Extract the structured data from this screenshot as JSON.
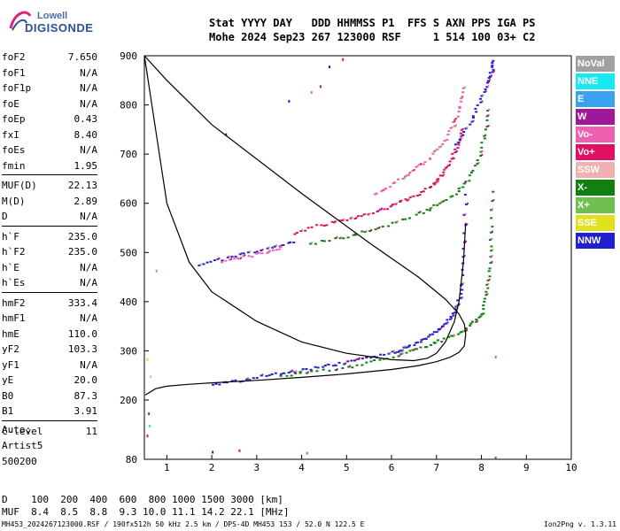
{
  "logo": {
    "line1": "Lowell",
    "line2": "DIGISONDE",
    "color": "#2d4f9a",
    "accent": "#e0207a"
  },
  "header": {
    "row1": "Stat YYYY DAY   DDD HHMMSS P1  FFS S AXN PPS IGA PS",
    "row2": "Mohe 2024 Sep23 267 123000 RSF     1 514 100 03+ C2"
  },
  "params": [
    [
      {
        "name": "foF2",
        "value": "7.650"
      },
      {
        "name": "foF1",
        "value": "N/A"
      },
      {
        "name": "foF1p",
        "value": "N/A"
      },
      {
        "name": "foE",
        "value": "N/A"
      },
      {
        "name": "foEp",
        "value": "0.43"
      },
      {
        "name": "fxI",
        "value": "8.40"
      },
      {
        "name": "foEs",
        "value": "N/A"
      },
      {
        "name": "fmin",
        "value": "1.95"
      }
    ],
    [
      {
        "name": "MUF(D)",
        "value": "22.13"
      },
      {
        "name": "M(D)",
        "value": "2.89"
      },
      {
        "name": "D",
        "value": "N/A"
      }
    ],
    [
      {
        "name": "h`F",
        "value": "235.0"
      },
      {
        "name": "h`F2",
        "value": "235.0"
      },
      {
        "name": "h`E",
        "value": "N/A"
      },
      {
        "name": "h`Es",
        "value": "N/A"
      }
    ],
    [
      {
        "name": "hmF2",
        "value": "333.4"
      },
      {
        "name": "hmF1",
        "value": "N/A"
      },
      {
        "name": "hmE",
        "value": "110.0"
      },
      {
        "name": "yF2",
        "value": "103.3"
      },
      {
        "name": "yF1",
        "value": "N/A"
      },
      {
        "name": "yE",
        "value": "20.0"
      },
      {
        "name": "B0",
        "value": "87.3"
      },
      {
        "name": "B1",
        "value": "3.91"
      }
    ],
    [
      {
        "name": "C-level",
        "value": "11"
      }
    ]
  ],
  "auto": {
    "line1": "Auto:",
    "line2": "Artist5",
    "line3": "500200"
  },
  "legend": [
    {
      "label": "NoVal",
      "color": "#a0a0a0"
    },
    {
      "label": "NNE",
      "color": "#18e8f0"
    },
    {
      "label": "E",
      "color": "#3aa0f0"
    },
    {
      "label": "W",
      "color": "#a01898"
    },
    {
      "label": "Vo-",
      "color": "#f060b0"
    },
    {
      "label": "Vo+",
      "color": "#e01060"
    },
    {
      "label": "SSW",
      "color": "#f0b0b0"
    },
    {
      "label": "X-",
      "color": "#108010"
    },
    {
      "label": "X+",
      "color": "#70c050"
    },
    {
      "label": "SSE",
      "color": "#e0e020"
    },
    {
      "label": "NNW",
      "color": "#2020d0"
    }
  ],
  "muf_table": {
    "row1": "D    100  200  400  600  800 1000 1500 3000 [km]",
    "row2": "MUF  8.4  8.5  8.8  9.3 10.0 11.1 14.2 22.1 [MHz]"
  },
  "footer": {
    "left": "MH453_2024267123000.RSF / 190fx512h 50 kHz 2.5 km / DPS-4D MH453 153 / 52.0 N 122.5 E",
    "right": "Ion2Png v. 1.3.11"
  },
  "chart_data": {
    "type": "scatter",
    "xlim": [
      0.5,
      10
    ],
    "ylim": [
      80,
      900
    ],
    "xticks": [
      1,
      2,
      3,
      4,
      5,
      6,
      7,
      8,
      9,
      10
    ],
    "yticks": [
      80,
      200,
      300,
      400,
      500,
      600,
      700,
      800,
      900
    ],
    "profile_curve": {
      "freq": [
        0.52,
        0.75,
        1.0,
        1.5,
        2.0,
        3.0,
        4.0,
        5.0,
        6.0,
        6.6,
        7.0,
        7.3,
        7.5,
        7.62,
        7.65,
        7.62,
        7.5,
        7.2,
        6.6,
        5.5,
        4.0,
        2.0,
        1.0,
        0.5
      ],
      "height": [
        210,
        223,
        228,
        232,
        235,
        240,
        246,
        253,
        262,
        270,
        278,
        287,
        297,
        310,
        333.4,
        355,
        375,
        405,
        450,
        520,
        620,
        760,
        850,
        900
      ]
    },
    "virtual_height_curve": {
      "freq": [
        0.5,
        1.0,
        1.5,
        2.0,
        3.0,
        4.0,
        5.0,
        6.0,
        6.5,
        6.8,
        7.0,
        7.2,
        7.4,
        7.5,
        7.6,
        7.65
      ],
      "height": [
        900,
        600,
        480,
        420,
        360,
        318,
        295,
        282,
        280,
        285,
        295,
        318,
        360,
        400,
        480,
        560
      ]
    },
    "traces": [
      {
        "name": "F2 O-mode",
        "color": "#2020d0",
        "freq": [
          2.0,
          2.5,
          3.0,
          3.5,
          4.0,
          4.5,
          5.0,
          5.5,
          6.0,
          6.3,
          6.6,
          6.9,
          7.1,
          7.3,
          7.45,
          7.55,
          7.6,
          7.63
        ],
        "height": [
          233,
          240,
          248,
          255,
          262,
          270,
          278,
          287,
          298,
          308,
          320,
          335,
          350,
          370,
          395,
          440,
          520,
          640
        ]
      },
      {
        "name": "F2 X-mode",
        "color": "#108010",
        "freq": [
          3.5,
          4.2,
          5.0,
          5.6,
          6.2,
          6.7,
          7.1,
          7.5,
          7.8,
          8.0,
          8.1,
          8.15,
          8.2,
          8.22
        ],
        "height": [
          250,
          258,
          268,
          280,
          295,
          310,
          323,
          337,
          360,
          380,
          420,
          470,
          540,
          640
        ]
      },
      {
        "name": "2F2 O-mode",
        "color": "#e01060",
        "freq": [
          3.8,
          4.3,
          4.8,
          5.3,
          5.8,
          6.2,
          6.6,
          6.9,
          7.1,
          7.3,
          7.45,
          7.55
        ],
        "height": [
          540,
          555,
          565,
          575,
          590,
          605,
          620,
          640,
          660,
          690,
          720,
          760
        ]
      },
      {
        "name": "2F2 X-mode",
        "color": "#108010",
        "freq": [
          4.2,
          4.8,
          5.4,
          6.0,
          6.6,
          7.0,
          7.4,
          7.7,
          7.9,
          8.05,
          8.15
        ],
        "height": [
          520,
          530,
          545,
          560,
          580,
          600,
          620,
          650,
          690,
          740,
          800
        ]
      },
      {
        "name": "3F2 O-mode",
        "color": "#f060b0",
        "freq": [
          5.6,
          6.0,
          6.4,
          6.8,
          7.1,
          7.35,
          7.5,
          7.6
        ],
        "height": [
          620,
          640,
          665,
          690,
          720,
          760,
          800,
          840
        ]
      },
      {
        "name": "3F2 X-mode",
        "color": "#2020d0",
        "freq": [
          7.4,
          7.7,
          7.9,
          8.1,
          8.2,
          8.25
        ],
        "height": [
          720,
          760,
          800,
          840,
          870,
          895
        ]
      },
      {
        "name": "Multi",
        "color": "#2020d0",
        "freq": [
          1.7,
          2.2,
          2.8,
          3.4,
          3.9
        ],
        "height": [
          478,
          488,
          500,
          512,
          525
        ]
      },
      {
        "name": "Multi2",
        "color": "#f060b0",
        "freq": [
          2.2,
          2.7,
          3.2,
          3.6
        ],
        "height": [
          482,
          492,
          503,
          513
        ]
      }
    ],
    "scatter_dots": [
      {
        "freq": 4.9,
        "height": 895,
        "color": "#e01060"
      },
      {
        "freq": 4.6,
        "height": 880,
        "color": "#2020d0"
      },
      {
        "freq": 4.4,
        "height": 840,
        "color": "#a01898"
      },
      {
        "freq": 4.2,
        "height": 828,
        "color": "#f060b0"
      },
      {
        "freq": 3.7,
        "height": 810,
        "color": "#2020d0"
      },
      {
        "freq": 2.3,
        "height": 742,
        "color": "#2020d0"
      },
      {
        "freq": 0.75,
        "height": 465,
        "color": "#70c050"
      },
      {
        "freq": 8.3,
        "height": 290,
        "color": "#3aa0f0"
      },
      {
        "freq": 8.3,
        "height": 85,
        "color": "#a01898"
      },
      {
        "freq": 4.1,
        "height": 95,
        "color": "#3aa0f0"
      },
      {
        "freq": 2.6,
        "height": 100,
        "color": "#a01898"
      },
      {
        "freq": 2.0,
        "height": 97,
        "color": "#2020d0"
      },
      {
        "freq": 0.55,
        "height": 130,
        "color": "#e01060"
      },
      {
        "freq": 0.6,
        "height": 150,
        "color": "#18e8f0"
      },
      {
        "freq": 0.58,
        "height": 175,
        "color": "#a01898"
      },
      {
        "freq": 0.55,
        "height": 285,
        "color": "#e0e020"
      },
      {
        "freq": 0.62,
        "height": 250,
        "color": "#f0b0b0"
      }
    ]
  }
}
